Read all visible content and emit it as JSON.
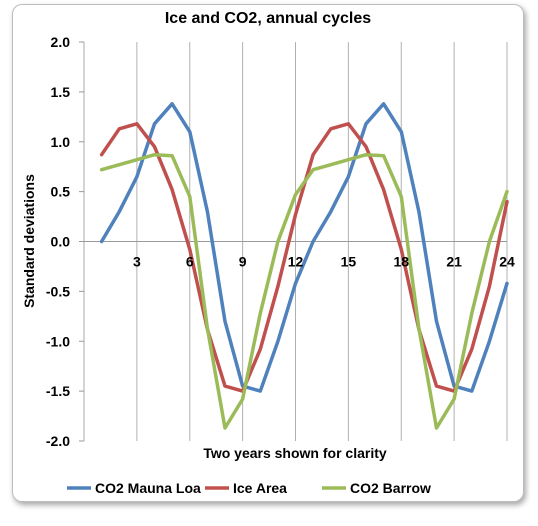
{
  "chart_data": {
    "type": "line",
    "title": "Ice and CO2, annual cycles",
    "xlabel": "Two years shown for clarity",
    "ylabel": "Standard deviations",
    "xlim": [
      0,
      24
    ],
    "ylim": [
      -2.0,
      2.0
    ],
    "xticks": [
      3,
      6,
      9,
      12,
      15,
      18,
      21,
      24
    ],
    "xtick_labels": [
      "3",
      "6",
      "9",
      "12",
      "15",
      "18",
      "21",
      "24"
    ],
    "yticks": [
      2.0,
      1.5,
      1.0,
      0.5,
      0.0,
      -0.5,
      -1.0,
      -1.5,
      -2.0
    ],
    "ytick_labels": [
      "2.0",
      "1.5",
      "1.0",
      "0.5",
      "0.0",
      "-0.5",
      "-1.0",
      "-1.5",
      "-2.0"
    ],
    "grid": "vertical",
    "legend_position": "bottom",
    "x": [
      1,
      2,
      3,
      4,
      5,
      6,
      7,
      8,
      9,
      10,
      11,
      12,
      13,
      14,
      15,
      16,
      17,
      18,
      19,
      20,
      21,
      22,
      23,
      24
    ],
    "series": [
      {
        "name": "CO2 Mauna Loa",
        "color": "#4f81bd",
        "values": [
          0.0,
          0.3,
          0.65,
          1.18,
          1.38,
          1.1,
          0.3,
          -0.8,
          -1.45,
          -1.5,
          -1.0,
          -0.42,
          0.0,
          0.3,
          0.65,
          1.18,
          1.38,
          1.1,
          0.3,
          -0.8,
          -1.45,
          -1.5,
          -1.0,
          -0.42
        ]
      },
      {
        "name": "Ice Area",
        "color": "#c0504d",
        "values": [
          0.87,
          1.13,
          1.18,
          0.95,
          0.52,
          -0.08,
          -0.88,
          -1.45,
          -1.5,
          -1.08,
          -0.45,
          0.27,
          0.87,
          1.13,
          1.18,
          0.95,
          0.52,
          -0.08,
          -0.88,
          -1.45,
          -1.5,
          -1.08,
          -0.45,
          0.4
        ]
      },
      {
        "name": "CO2 Barrow",
        "color": "#9bbb59",
        "values": [
          0.72,
          0.77,
          0.82,
          0.87,
          0.86,
          0.45,
          -0.87,
          -1.87,
          -1.58,
          -0.72,
          0.0,
          0.47,
          0.72,
          0.77,
          0.82,
          0.87,
          0.86,
          0.45,
          -0.87,
          -1.87,
          -1.58,
          -0.72,
          0.0,
          0.5
        ]
      }
    ]
  }
}
